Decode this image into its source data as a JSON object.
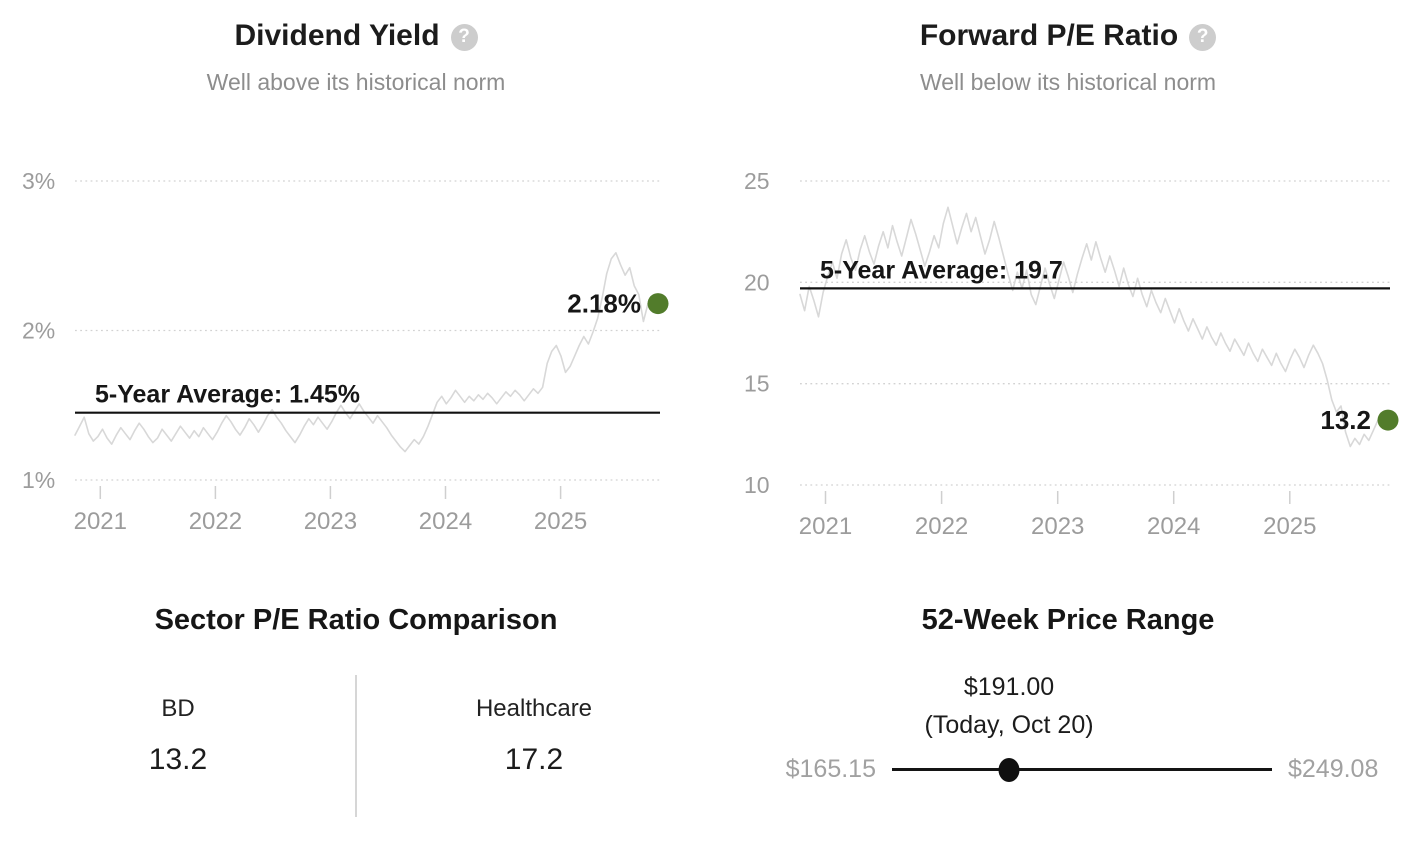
{
  "colors": {
    "accent_green": "#527c2b",
    "line_gray": "#d8d8d8",
    "grid_gray": "#d2d2d2",
    "axis_gray": "#9c9c9c",
    "average_line": "#111111",
    "text_dark": "#161616",
    "help_icon_bg": "#cdcdcd",
    "thumb_black": "#101010"
  },
  "icons": {
    "help_glyph": "?"
  },
  "chart_data": [
    {
      "type": "line",
      "title": "Dividend Yield",
      "subtitle": "Well above its historical norm",
      "x_start": 2020.78,
      "x_end": 2025.76,
      "x_ticks": [
        "2021",
        "2022",
        "2023",
        "2024",
        "2025"
      ],
      "y_ticks": [
        {
          "label": "1%",
          "value": 1
        },
        {
          "label": "2%",
          "value": 2
        },
        {
          "label": "3%",
          "value": 3
        }
      ],
      "ylim": [
        1,
        3
      ],
      "grid": "dotted",
      "average": {
        "label": "5-Year Average: 1.45%",
        "value": 1.45
      },
      "current": {
        "label": "2.18%",
        "value": 2.18
      },
      "values": [
        1.3,
        1.36,
        1.42,
        1.31,
        1.26,
        1.29,
        1.34,
        1.28,
        1.24,
        1.3,
        1.35,
        1.31,
        1.27,
        1.33,
        1.38,
        1.34,
        1.29,
        1.25,
        1.28,
        1.34,
        1.3,
        1.26,
        1.31,
        1.36,
        1.32,
        1.28,
        1.33,
        1.29,
        1.35,
        1.31,
        1.27,
        1.32,
        1.38,
        1.43,
        1.39,
        1.34,
        1.3,
        1.35,
        1.41,
        1.37,
        1.32,
        1.37,
        1.43,
        1.47,
        1.42,
        1.38,
        1.33,
        1.29,
        1.25,
        1.3,
        1.36,
        1.41,
        1.37,
        1.42,
        1.38,
        1.34,
        1.39,
        1.45,
        1.5,
        1.45,
        1.41,
        1.46,
        1.51,
        1.46,
        1.42,
        1.38,
        1.43,
        1.39,
        1.35,
        1.3,
        1.26,
        1.22,
        1.19,
        1.23,
        1.27,
        1.24,
        1.29,
        1.36,
        1.44,
        1.52,
        1.56,
        1.51,
        1.55,
        1.6,
        1.56,
        1.52,
        1.56,
        1.53,
        1.57,
        1.54,
        1.58,
        1.55,
        1.51,
        1.55,
        1.59,
        1.56,
        1.6,
        1.57,
        1.53,
        1.57,
        1.61,
        1.58,
        1.62,
        1.78,
        1.86,
        1.9,
        1.83,
        1.72,
        1.76,
        1.83,
        1.9,
        1.96,
        1.91,
        1.99,
        2.08,
        2.22,
        2.38,
        2.48,
        2.52,
        2.44,
        2.37,
        2.42,
        2.3,
        2.24,
        2.06,
        2.18
      ]
    },
    {
      "type": "line",
      "title": "Forward P/E Ratio",
      "subtitle": "Well below its historical norm",
      "x_start": 2020.78,
      "x_end": 2025.76,
      "x_ticks": [
        "2021",
        "2022",
        "2023",
        "2024",
        "2025"
      ],
      "y_ticks": [
        {
          "label": "10",
          "value": 10
        },
        {
          "label": "15",
          "value": 15
        },
        {
          "label": "20",
          "value": 20
        },
        {
          "label": "25",
          "value": 25
        }
      ],
      "ylim": [
        10,
        25
      ],
      "grid": "dotted",
      "average": {
        "label": "5-Year Average: 19.7",
        "value": 19.7
      },
      "current": {
        "label": "13.2",
        "value": 13.2
      },
      "values": [
        19.4,
        18.6,
        19.8,
        19.1,
        18.3,
        19.5,
        20.3,
        21.0,
        20.2,
        21.4,
        22.1,
        21.2,
        20.6,
        21.6,
        22.3,
        21.5,
        20.9,
        21.8,
        22.5,
        21.7,
        22.8,
        22.0,
        21.3,
        22.2,
        23.1,
        22.4,
        21.6,
        20.8,
        21.5,
        22.3,
        21.7,
        22.9,
        23.7,
        22.8,
        21.9,
        22.7,
        23.4,
        22.5,
        23.2,
        22.3,
        21.4,
        22.1,
        23.0,
        22.2,
        21.3,
        20.4,
        19.6,
        20.5,
        19.7,
        20.6,
        19.4,
        18.9,
        19.8,
        20.7,
        19.9,
        19.2,
        20.1,
        21.0,
        20.3,
        19.5,
        20.4,
        21.2,
        21.9,
        21.1,
        22.0,
        21.2,
        20.5,
        21.3,
        20.6,
        19.8,
        20.7,
        19.9,
        19.3,
        20.2,
        19.4,
        18.8,
        19.6,
        19.0,
        18.5,
        19.2,
        18.6,
        18.0,
        18.7,
        18.1,
        17.6,
        18.2,
        17.7,
        17.2,
        17.8,
        17.3,
        16.9,
        17.5,
        17.0,
        16.6,
        17.2,
        16.8,
        16.4,
        17.0,
        16.5,
        16.1,
        16.7,
        16.3,
        15.9,
        16.5,
        16.0,
        15.6,
        16.2,
        16.7,
        16.3,
        15.8,
        16.4,
        16.9,
        16.5,
        16.0,
        15.2,
        14.2,
        13.6,
        13.9,
        12.6,
        11.9,
        12.3,
        12.0,
        12.5,
        12.2,
        12.7,
        13.2
      ]
    },
    {
      "type": "comparison",
      "title": "Sector P/E Ratio Comparison",
      "columns": [
        {
          "label": "BD",
          "value": "13.2"
        },
        {
          "label": "Healthcare",
          "value": "17.2"
        }
      ]
    },
    {
      "type": "range",
      "title": "52-Week Price Range",
      "current_label": "$191.00",
      "current_note": "(Today, Oct 20)",
      "min_label": "$165.15",
      "max_label": "$249.08",
      "min": 165.15,
      "max": 249.08,
      "current": 191.0
    }
  ]
}
